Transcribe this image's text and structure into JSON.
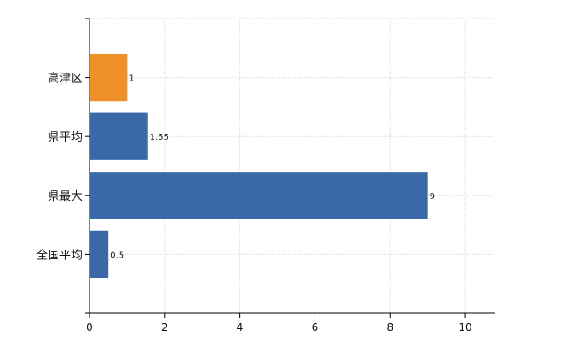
{
  "chart_data": {
    "type": "bar",
    "orientation": "horizontal",
    "categories": [
      "高津区",
      "県平均",
      "県最大",
      "全国平均"
    ],
    "values": [
      1,
      1.55,
      9,
      0.5
    ],
    "value_labels": [
      "1",
      "1.55",
      "9",
      "0.5"
    ],
    "bar_colors": [
      "#f0902a",
      "#3a69a8",
      "#3a69a8",
      "#3a69a8"
    ],
    "x_ticks": [
      0,
      2,
      4,
      6,
      8,
      10
    ],
    "xlim": [
      0,
      10.8
    ],
    "grid": true,
    "title": "",
    "xlabel": "",
    "ylabel": ""
  }
}
